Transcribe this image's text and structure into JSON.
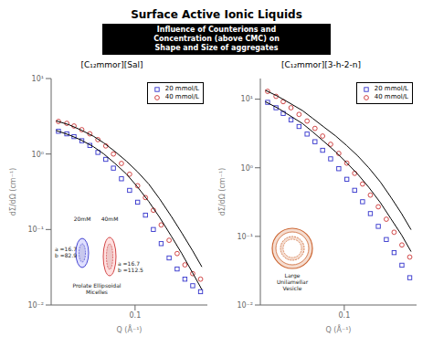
{
  "title": "Surface Active Ionic Liquids",
  "subtitle": "Influence of Counterions and\nConcentration (above CMC) on\nShape and Size of aggregates",
  "chart_data": [
    {
      "type": "scatter",
      "title": "[C₁₂mmor][Sal]",
      "xlabel": "Q (Å⁻¹)",
      "ylabel": "dΣ/dΩ (cm⁻¹)",
      "log": true,
      "grid": false,
      "legend": "upper right",
      "xlim": [
        0.02,
        0.4
      ],
      "ylim": [
        0.01,
        10
      ],
      "xticks": [
        0.1
      ],
      "yticks": [
        {
          "value": 0.01,
          "label": "10⁻²"
        },
        {
          "value": 0.1,
          "label": "10⁻¹"
        },
        {
          "value": 1,
          "label": "10⁰"
        },
        {
          "value": 10,
          "label": "10¹"
        }
      ],
      "series": [
        {
          "name": "20 mmol/L",
          "type": "scatter",
          "marker": "square",
          "color": "#3333cc",
          "x": [
            0.023,
            0.027,
            0.031,
            0.036,
            0.042,
            0.049,
            0.057,
            0.066,
            0.077,
            0.09,
            0.105,
            0.122,
            0.142,
            0.165,
            0.192,
            0.224,
            0.26,
            0.302,
            0.351
          ],
          "values": [
            2.0,
            1.85,
            1.7,
            1.5,
            1.3,
            1.05,
            0.85,
            0.65,
            0.47,
            0.33,
            0.23,
            0.155,
            0.1,
            0.065,
            0.042,
            0.03,
            0.022,
            0.018,
            0.015
          ]
        },
        {
          "name": "40 mmol/L",
          "type": "scatter",
          "marker": "circle",
          "color": "#cc3333",
          "x": [
            0.023,
            0.027,
            0.031,
            0.036,
            0.042,
            0.049,
            0.057,
            0.066,
            0.077,
            0.09,
            0.105,
            0.122,
            0.142,
            0.165,
            0.192,
            0.224,
            0.26,
            0.302,
            0.351
          ],
          "values": [
            2.7,
            2.55,
            2.35,
            2.1,
            1.85,
            1.55,
            1.28,
            1.0,
            0.75,
            0.54,
            0.38,
            0.265,
            0.18,
            0.115,
            0.072,
            0.048,
            0.034,
            0.026,
            0.022
          ]
        },
        {
          "type": "line",
          "line_style": "solid",
          "color": "#000000",
          "x": [
            0.022,
            0.028,
            0.035,
            0.045,
            0.055,
            0.068,
            0.085,
            0.105,
            0.13,
            0.16,
            0.2,
            0.245,
            0.3,
            0.36
          ],
          "values": [
            2.05,
            1.8,
            1.55,
            1.25,
            1.0,
            0.75,
            0.54,
            0.365,
            0.235,
            0.145,
            0.082,
            0.048,
            0.027,
            0.016
          ]
        },
        {
          "type": "line",
          "line_style": "solid",
          "color": "#000000",
          "x": [
            0.022,
            0.028,
            0.035,
            0.045,
            0.055,
            0.068,
            0.085,
            0.105,
            0.13,
            0.16,
            0.2,
            0.245,
            0.3,
            0.36
          ],
          "values": [
            2.75,
            2.45,
            2.1,
            1.72,
            1.4,
            1.08,
            0.8,
            0.58,
            0.4,
            0.255,
            0.15,
            0.09,
            0.053,
            0.032
          ]
        }
      ],
      "annotations": [
        "20mM",
        "40mM",
        "a =16.7\nb =82.9",
        "a =16.7\nb =112.5",
        "Prolate Ellipsoidal\nMicelles"
      ]
    },
    {
      "type": "scatter",
      "title": "[C₁₂mmor][3-h-2-n]",
      "xlabel": "Q (Å⁻¹)",
      "ylabel": "dΣ/dΩ (cm⁻¹)",
      "log": true,
      "grid": false,
      "legend": "upper right",
      "xlim": [
        0.02,
        0.4
      ],
      "ylim": [
        0.01,
        20
      ],
      "xticks": [
        0.1
      ],
      "yticks": [
        {
          "value": 0.01,
          "label": "10⁻²"
        },
        {
          "value": 0.1,
          "label": "10⁻¹"
        },
        {
          "value": 1,
          "label": "10⁰"
        },
        {
          "value": 10,
          "label": "10¹"
        }
      ],
      "series": [
        {
          "name": "20 mmol/L",
          "type": "scatter",
          "marker": "square",
          "color": "#3333cc",
          "x": [
            0.023,
            0.027,
            0.031,
            0.036,
            0.042,
            0.049,
            0.057,
            0.066,
            0.077,
            0.09,
            0.105,
            0.122,
            0.142,
            0.165,
            0.192,
            0.224,
            0.26,
            0.302,
            0.351
          ],
          "values": [
            9.0,
            7.5,
            6.2,
            5.0,
            4.0,
            3.1,
            2.4,
            1.8,
            1.35,
            0.97,
            0.68,
            0.47,
            0.32,
            0.215,
            0.14,
            0.09,
            0.058,
            0.038,
            0.025
          ]
        },
        {
          "name": "40 mmol/L",
          "type": "scatter",
          "marker": "circle",
          "color": "#cc3333",
          "x": [
            0.023,
            0.027,
            0.031,
            0.036,
            0.042,
            0.049,
            0.057,
            0.066,
            0.077,
            0.09,
            0.105,
            0.122,
            0.142,
            0.165,
            0.192,
            0.224,
            0.26,
            0.302,
            0.351
          ],
          "values": [
            13.0,
            11.0,
            9.2,
            7.5,
            6.0,
            4.8,
            3.75,
            2.9,
            2.2,
            1.62,
            1.17,
            0.83,
            0.58,
            0.4,
            0.27,
            0.178,
            0.115,
            0.075,
            0.05
          ]
        },
        {
          "type": "line",
          "line_style": "solid",
          "color": "#000000",
          "x": [
            0.022,
            0.028,
            0.035,
            0.045,
            0.055,
            0.068,
            0.085,
            0.105,
            0.13,
            0.16,
            0.2,
            0.245,
            0.3,
            0.36
          ],
          "values": [
            9.2,
            7.4,
            5.8,
            4.4,
            3.3,
            2.4,
            1.7,
            1.18,
            0.8,
            0.52,
            0.31,
            0.18,
            0.105,
            0.06
          ]
        },
        {
          "type": "line",
          "line_style": "solid",
          "color": "#000000",
          "x": [
            0.022,
            0.028,
            0.035,
            0.045,
            0.055,
            0.068,
            0.085,
            0.105,
            0.13,
            0.16,
            0.2,
            0.245,
            0.3,
            0.36
          ],
          "values": [
            13.5,
            11.0,
            8.8,
            6.8,
            5.2,
            3.9,
            2.9,
            2.1,
            1.48,
            1.0,
            0.62,
            0.37,
            0.215,
            0.125
          ]
        }
      ],
      "annotations": [
        "Large\nUnilamellar\nVesicle"
      ]
    }
  ]
}
